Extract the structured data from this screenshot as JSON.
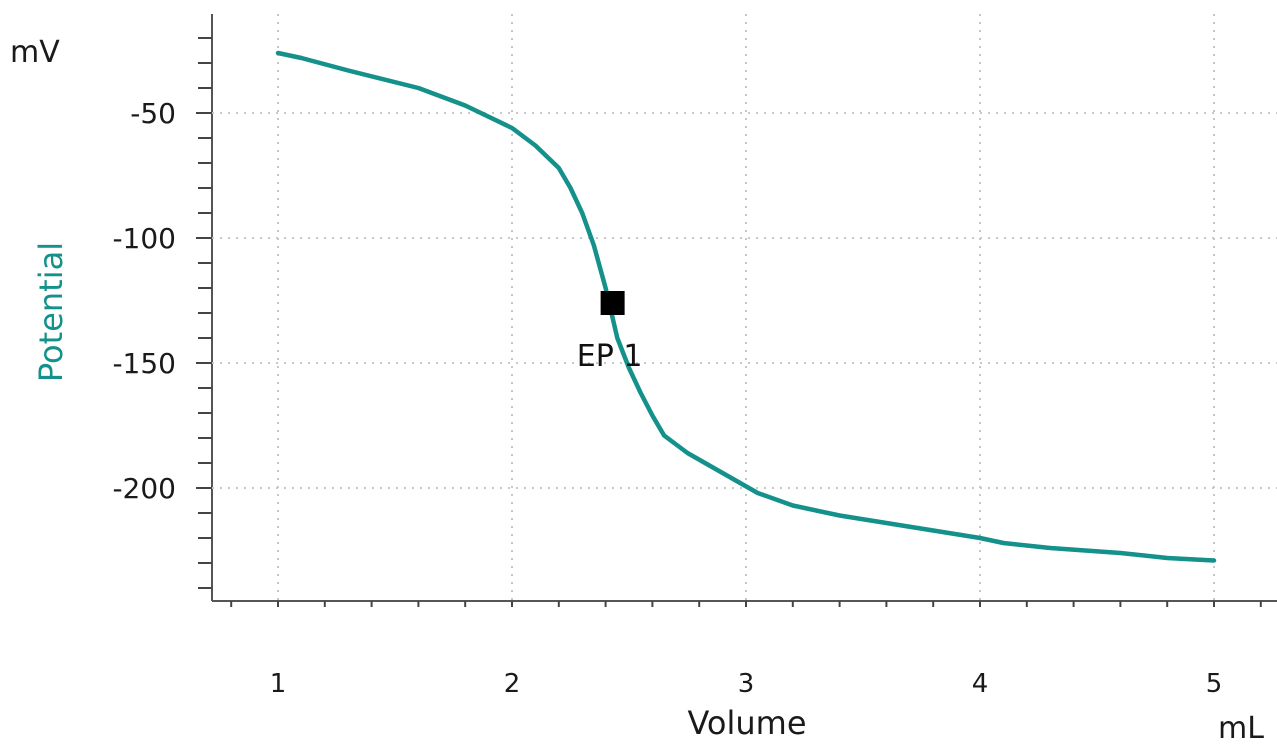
{
  "chart_data": {
    "type": "line",
    "title": "",
    "xlabel": "Volume",
    "xunit": "mL",
    "ylabel": "Potential",
    "yunit": "mV",
    "xlim": [
      0.7,
      5.27
    ],
    "ylim": [
      -245,
      -10
    ],
    "x_ticks": [
      1,
      2,
      3,
      4,
      5
    ],
    "x_tick_labels": [
      "1",
      "2",
      "3",
      "4",
      "5"
    ],
    "y_ticks": [
      -50,
      -100,
      -150,
      -200
    ],
    "y_tick_labels": [
      "-50",
      "-100",
      "-150",
      "-200"
    ],
    "grid": true,
    "series": [
      {
        "color": "#14918a",
        "x": [
          1.0,
          1.1,
          1.3,
          1.6,
          1.8,
          2.0,
          2.1,
          2.2,
          2.25,
          2.3,
          2.35,
          2.4,
          2.45,
          2.5,
          2.55,
          2.6,
          2.65,
          2.75,
          2.9,
          3.05,
          3.2,
          3.4,
          3.6,
          3.8,
          4.0,
          4.1,
          4.3,
          4.6,
          4.8,
          5.0
        ],
        "y": [
          -26,
          -28,
          -33,
          -40,
          -47,
          -56,
          -63,
          -72,
          -80,
          -90,
          -103,
          -120,
          -140,
          -152,
          -162,
          -171,
          -179,
          -186,
          -194,
          -202,
          -207,
          -211,
          -214,
          -217,
          -220,
          -222,
          -224,
          -226,
          -228,
          -229
        ]
      }
    ],
    "annotations": [
      {
        "label": "EP 1",
        "x": 2.43,
        "y": -126,
        "marker": "square",
        "color": "#000000"
      }
    ]
  }
}
